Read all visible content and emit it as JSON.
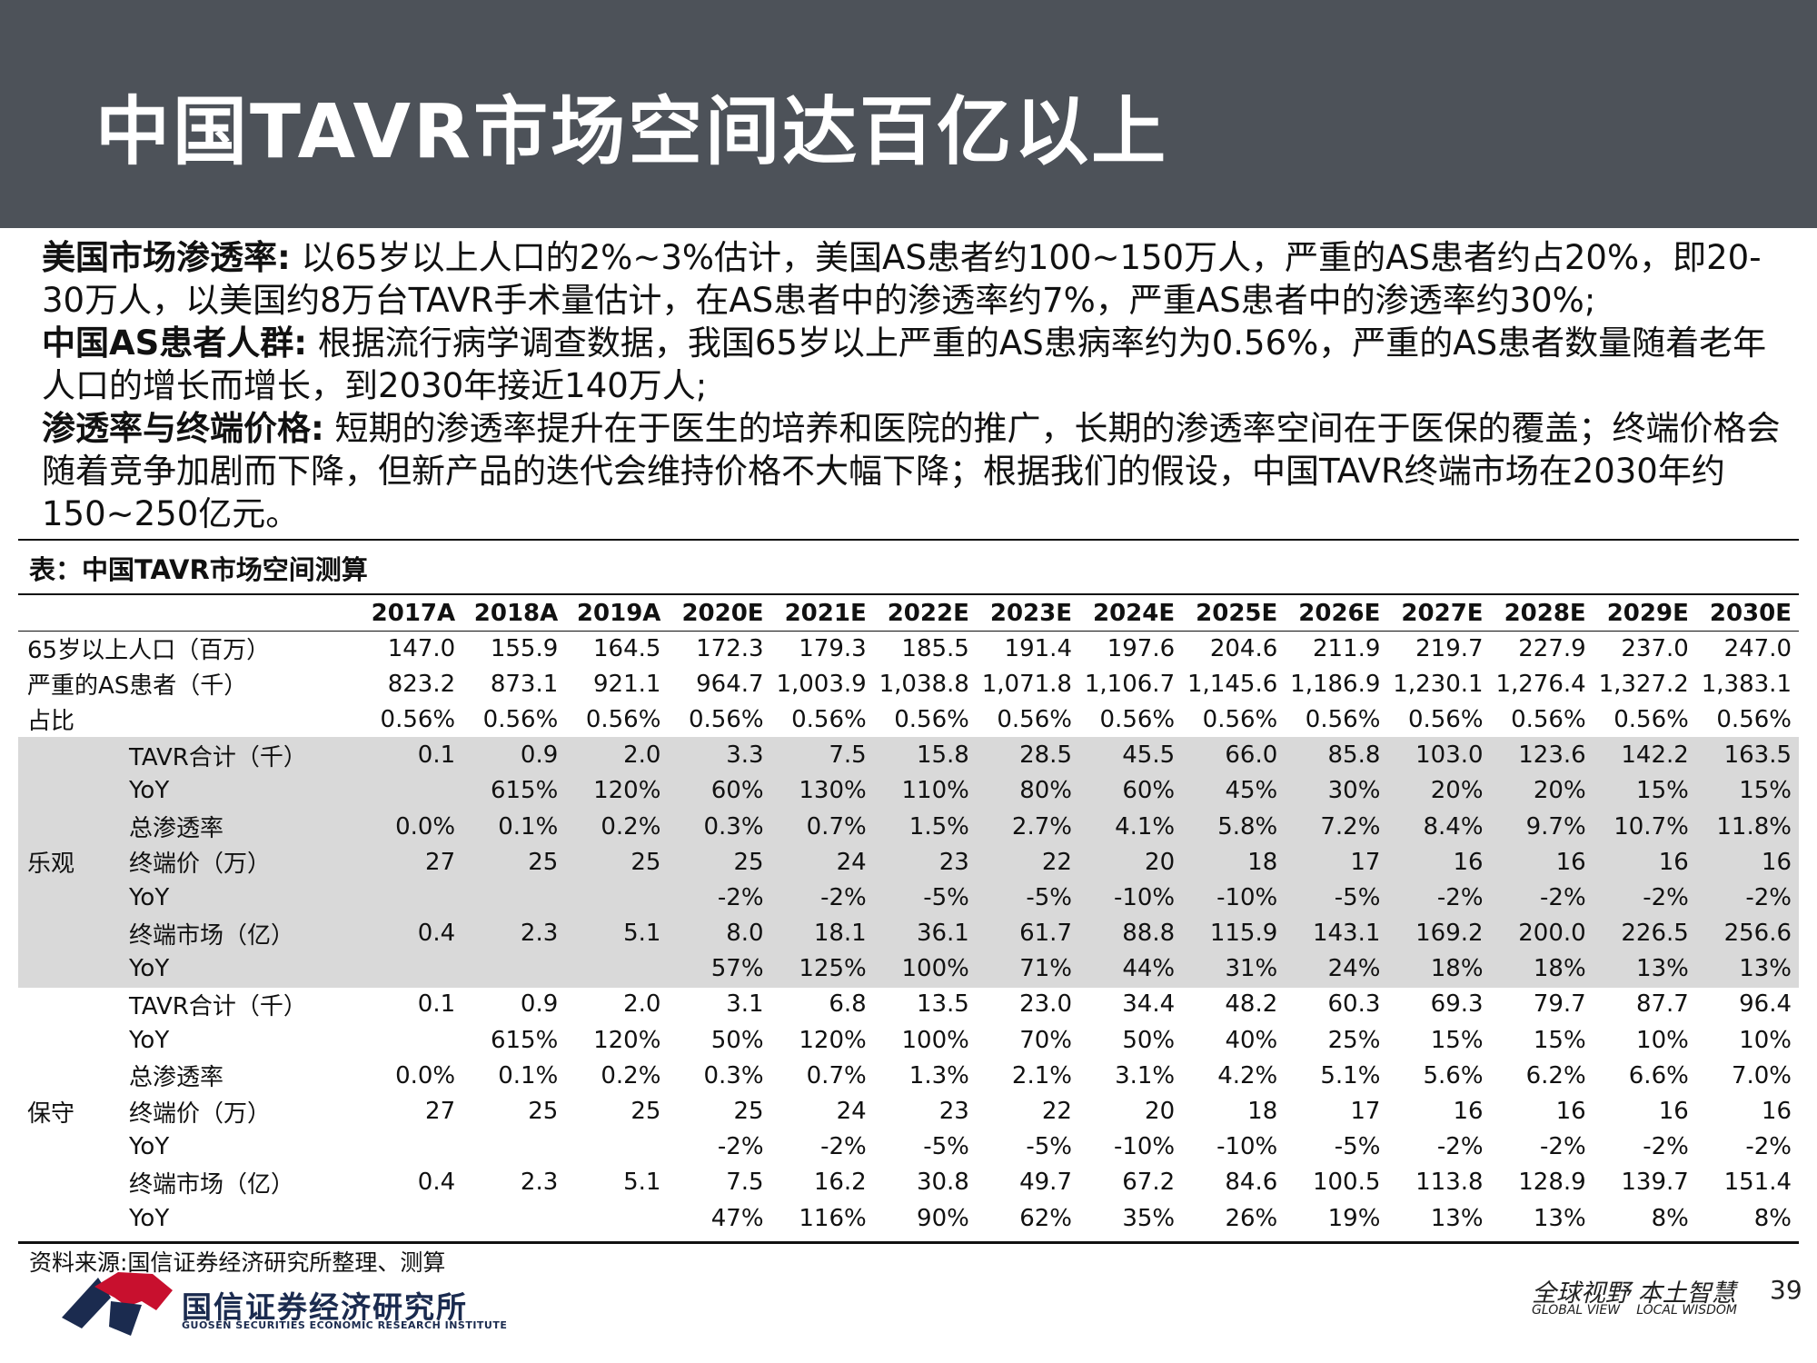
{
  "slide": {
    "title": "中国TAVR市场空间达百亿以上",
    "page_number": "39"
  },
  "intro": {
    "p1_lead": "美国市场渗透率:",
    "p1_text": " 以65岁以上人口的2%~3%估计，美国AS患者约100~150万人，严重的AS患者约占20%，即20-30万人，以美国约8万台TAVR手术量估计，在AS患者中的渗透率约7%，严重AS患者中的渗透率约30%;",
    "p2_lead": "中国AS患者人群:",
    "p2_text": " 根据流行病学调查数据，我国65岁以上严重的AS患病率约为0.56%，严重的AS患者数量随着老年人口的增长而增长，到2030年接近140万人;",
    "p3_lead": "渗透率与终端价格:",
    "p3_text": " 短期的渗透率提升在于医生的培养和医院的推广，长期的渗透率空间在于医保的覆盖；终端价格会随着竞争加剧而下降，但新产品的迭代会维持价格不大幅下降；根据我们的假设，中国TAVR终端市场在2030年约150~250亿元。"
  },
  "table": {
    "title": "表：中国TAVR市场空间测算",
    "years": [
      "2017A",
      "2018A",
      "2019A",
      "2020E",
      "2021E",
      "2022E",
      "2023E",
      "2024E",
      "2025E",
      "2026E",
      "2027E",
      "2028E",
      "2029E",
      "2030E"
    ],
    "base_rows": [
      {
        "label": "65岁以上人口（百万）",
        "values": [
          "147.0",
          "155.9",
          "164.5",
          "172.3",
          "179.3",
          "185.5",
          "191.4",
          "197.6",
          "204.6",
          "211.9",
          "219.7",
          "227.9",
          "237.0",
          "247.0"
        ]
      },
      {
        "label": "严重的AS患者（千）",
        "values": [
          "823.2",
          "873.1",
          "921.1",
          "964.7",
          "1,003.9",
          "1,038.8",
          "1,071.8",
          "1,106.7",
          "1,145.6",
          "1,186.9",
          "1,230.1",
          "1,276.4",
          "1,327.2",
          "1,383.1"
        ]
      },
      {
        "label": "占比",
        "values": [
          "0.56%",
          "0.56%",
          "0.56%",
          "0.56%",
          "0.56%",
          "0.56%",
          "0.56%",
          "0.56%",
          "0.56%",
          "0.56%",
          "0.56%",
          "0.56%",
          "0.56%",
          "0.56%"
        ]
      }
    ],
    "optimistic": {
      "group": "乐观",
      "rows": [
        {
          "label": "TAVR合计（千）",
          "values": [
            "0.1",
            "0.9",
            "2.0",
            "3.3",
            "7.5",
            "15.8",
            "28.5",
            "45.5",
            "66.0",
            "85.8",
            "103.0",
            "123.6",
            "142.2",
            "163.5"
          ]
        },
        {
          "label": "YoY",
          "values": [
            "",
            "615%",
            "120%",
            "60%",
            "130%",
            "110%",
            "80%",
            "60%",
            "45%",
            "30%",
            "20%",
            "20%",
            "15%",
            "15%"
          ]
        },
        {
          "label": "总渗透率",
          "values": [
            "0.0%",
            "0.1%",
            "0.2%",
            "0.3%",
            "0.7%",
            "1.5%",
            "2.7%",
            "4.1%",
            "5.8%",
            "7.2%",
            "8.4%",
            "9.7%",
            "10.7%",
            "11.8%"
          ]
        },
        {
          "label": "终端价（万）",
          "values": [
            "27",
            "25",
            "25",
            "25",
            "24",
            "23",
            "22",
            "20",
            "18",
            "17",
            "16",
            "16",
            "16",
            "16"
          ]
        },
        {
          "label": "YoY",
          "values": [
            "",
            "",
            "",
            "-2%",
            "-2%",
            "-5%",
            "-5%",
            "-10%",
            "-10%",
            "-5%",
            "-2%",
            "-2%",
            "-2%",
            "-2%"
          ]
        },
        {
          "label": "终端市场（亿）",
          "values": [
            "0.4",
            "2.3",
            "5.1",
            "8.0",
            "18.1",
            "36.1",
            "61.7",
            "88.8",
            "115.9",
            "143.1",
            "169.2",
            "200.0",
            "226.5",
            "256.6"
          ]
        },
        {
          "label": "YoY",
          "values": [
            "",
            "",
            "",
            "57%",
            "125%",
            "100%",
            "71%",
            "44%",
            "31%",
            "24%",
            "18%",
            "18%",
            "13%",
            "13%"
          ]
        }
      ]
    },
    "conservative": {
      "group": "保守",
      "rows": [
        {
          "label": "TAVR合计（千）",
          "values": [
            "0.1",
            "0.9",
            "2.0",
            "3.1",
            "6.8",
            "13.5",
            "23.0",
            "34.4",
            "48.2",
            "60.3",
            "69.3",
            "79.7",
            "87.7",
            "96.4"
          ]
        },
        {
          "label": "YoY",
          "values": [
            "",
            "615%",
            "120%",
            "50%",
            "120%",
            "100%",
            "70%",
            "50%",
            "40%",
            "25%",
            "15%",
            "15%",
            "10%",
            "10%"
          ]
        },
        {
          "label": "总渗透率",
          "values": [
            "0.0%",
            "0.1%",
            "0.2%",
            "0.3%",
            "0.7%",
            "1.3%",
            "2.1%",
            "3.1%",
            "4.2%",
            "5.1%",
            "5.6%",
            "6.2%",
            "6.6%",
            "7.0%"
          ]
        },
        {
          "label": "终端价（万）",
          "values": [
            "27",
            "25",
            "25",
            "25",
            "24",
            "23",
            "22",
            "20",
            "18",
            "17",
            "16",
            "16",
            "16",
            "16"
          ]
        },
        {
          "label": "YoY",
          "values": [
            "",
            "",
            "",
            "-2%",
            "-2%",
            "-5%",
            "-5%",
            "-10%",
            "-10%",
            "-5%",
            "-2%",
            "-2%",
            "-2%",
            "-2%"
          ]
        },
        {
          "label": "终端市场（亿）",
          "values": [
            "0.4",
            "2.3",
            "5.1",
            "7.5",
            "16.2",
            "30.8",
            "49.7",
            "67.2",
            "84.6",
            "100.5",
            "113.8",
            "128.9",
            "139.7",
            "151.4"
          ]
        },
        {
          "label": "YoY",
          "values": [
            "",
            "",
            "",
            "47%",
            "116%",
            "90%",
            "62%",
            "35%",
            "26%",
            "19%",
            "13%",
            "13%",
            "8%",
            "8%"
          ]
        }
      ]
    },
    "source": "资料来源:国信证券经济研究所整理、测算"
  },
  "footer": {
    "logo_cn": "国信证券经济研究所",
    "logo_en": "GUOSEN SECURITIES ECONOMIC RESEARCH INSTITUTE",
    "slogan_cn": "全球视野 本土智慧",
    "slogan_en_left": "GLOBAL VIEW",
    "slogan_en_right": "LOCAL WISDOM"
  },
  "colors": {
    "header_bg": "#4d5259",
    "band_bg": "#d9d9d9",
    "logo_red": "#c8102e",
    "logo_navy": "#1b2b4f"
  }
}
